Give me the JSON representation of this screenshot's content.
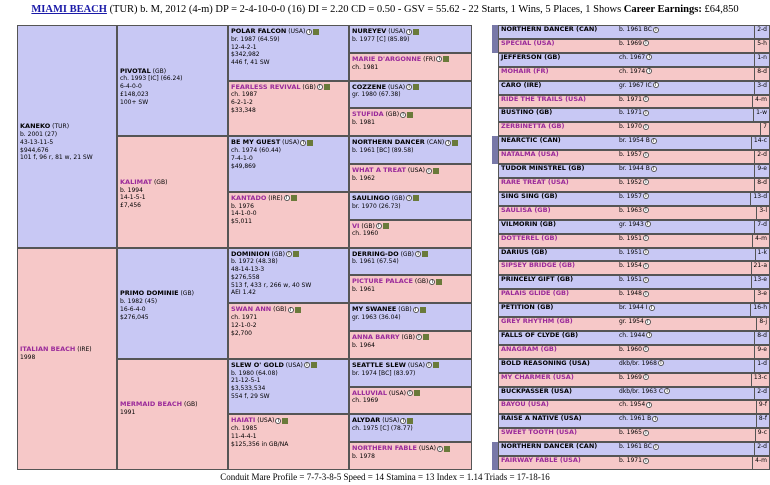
{
  "header": {
    "horse": "MIAMI BEACH",
    "rest": " (TUR) b. M, 2012 (4-m) DP = 2-4-10-0-0 (16) DI = 2.20   CD = 0.50 - GSV = 55.62 - 22 Starts, 1 Wins, 5 Places, 1 Shows ",
    "earn_label": "Career Earnings:",
    "earn": " £64,850"
  },
  "footer": "Conduit Mare Profile = 7-7-3-8-5   Speed = 14   Stamina = 13   Index = 1.14   Triads = 17-18-16",
  "g1": [
    {
      "name": "KANEKO",
      "rest": " (TUR)",
      "lines": [
        "b. 2001 (27)",
        "43-13-11-5",
        "$944,676",
        "101 f, 96 r, 81 w, 21 SW"
      ]
    },
    {
      "name": "ITALIAN BEACH",
      "rest": " (IRE)",
      "lines": [
        "1998"
      ]
    }
  ],
  "g2": [
    {
      "name": "PIVOTAL",
      "rest": " (GB)",
      "lines": [
        "ch. 1993 [IC] (66.24)",
        "6-4-0-0",
        "£148,023",
        "100+ SW"
      ]
    },
    {
      "name": "KALIMAT",
      "rest": " (GB)",
      "lines": [
        "b. 1994",
        "14-1-5-1",
        "£7,456"
      ]
    },
    {
      "name": "PRIMO DOMINIE",
      "rest": " (GB)",
      "lines": [
        "b. 1982 (45)",
        "16-6-4-0",
        "$276,045"
      ]
    },
    {
      "name": "MERMAID BEACH",
      "rest": " (GB)",
      "lines": [
        "1991"
      ]
    }
  ],
  "g3": [
    {
      "name": "POLAR FALCON",
      "rest": " (USA)",
      "lines": [
        "br. 1987 (64.59)",
        "12-4-2-1",
        "$342,982",
        "446 f, 41 SW"
      ]
    },
    {
      "name": "FEARLESS REVIVAL",
      "rest": " (GB)",
      "lines": [
        "ch. 1987",
        "6-2-1-2",
        "$33,348"
      ]
    },
    {
      "name": "BE MY GUEST",
      "rest": " (USA)",
      "lines": [
        "ch. 1974 (60.44)",
        "7-4-1-0",
        "$49,869"
      ]
    },
    {
      "name": "KANTADO",
      "rest": " (IRE)",
      "lines": [
        "b. 1976",
        "14-1-0-0",
        "$5,011"
      ]
    },
    {
      "name": "DOMINION",
      "rest": " (GB)",
      "lines": [
        "b. 1972 (48.38)",
        "48-14-13-3",
        "$276,558",
        "513 f, 433 r, 266 w, 40 SW",
        "AEI 1.42"
      ]
    },
    {
      "name": "SWAN ANN",
      "rest": " (GB)",
      "lines": [
        "ch. 1971",
        "12-1-0-2",
        "$2,700"
      ]
    },
    {
      "name": "SLEW O' GOLD",
      "rest": " (USA)",
      "lines": [
        "b. 1980 (64.08)",
        "21-12-5-1",
        "$3,533,534",
        "554 f, 29 SW"
      ]
    },
    {
      "name": "HAIATI",
      "rest": " (USA)",
      "lines": [
        "ch. 1985",
        "11-4-4-1",
        "$125,356 in GB/NA"
      ]
    }
  ],
  "g4": [
    {
      "name": "NUREYEV",
      "rest": " (USA)",
      "l": "b. 1977 [C] (85.89)"
    },
    {
      "name": "MARIE D'ARGONNE",
      "rest": " (FR)",
      "l": "ch. 1981"
    },
    {
      "name": "COZZENE",
      "rest": " (USA)",
      "l": "gr. 1980 (67.38)"
    },
    {
      "name": "STUFIDA",
      "rest": " (GB)",
      "l": "b. 1981"
    },
    {
      "name": "NORTHERN DANCER",
      "rest": " (CAN)",
      "l": "b. 1961 [BC] (89.58)"
    },
    {
      "name": "WHAT A TREAT",
      "rest": " (USA)",
      "l": "b. 1962"
    },
    {
      "name": "SAULINGO",
      "rest": " (GB)",
      "l": "br. 1970 (26.73)"
    },
    {
      "name": "VI",
      "rest": " (GB)",
      "l": "ch. 1960"
    },
    {
      "name": "DERRING-DO",
      "rest": " (GB)",
      "l": "b. 1961 (67.54)"
    },
    {
      "name": "PICTURE PALACE",
      "rest": " (GB)",
      "l": "b. 1961"
    },
    {
      "name": "MY SWANEE",
      "rest": " (GB)",
      "l": "gr. 1963 (36.04)"
    },
    {
      "name": "ANNA BARRY",
      "rest": " (GB)",
      "l": "b. 1964"
    },
    {
      "name": "SEATTLE SLEW",
      "rest": " (USA)",
      "l": "br. 1974 [BC] (83.97)"
    },
    {
      "name": "ALLUVIAL",
      "rest": " (USA)",
      "l": "ch. 1969"
    },
    {
      "name": "ALYDAR",
      "rest": " (USA)",
      "l": "ch. 1975 [C] (78.77)"
    },
    {
      "name": "NORTHERN FABLE",
      "rest": " (USA)",
      "l": "b. 1978"
    }
  ],
  "g5": [
    {
      "name": "NORTHERN DANCER (CAN)",
      "l": "b. 1961 BC",
      "sr": "2-d"
    },
    {
      "name": "SPECIAL (USA)",
      "l": "b. 1969",
      "sr": "5-h"
    },
    {
      "name": "JEFFERSON (GB)",
      "l": "ch. 1967",
      "sr": "1-n"
    },
    {
      "name": "MOHAIR (FR)",
      "l": "ch. 1974",
      "sr": "8-d"
    },
    {
      "name": "CARO (IRE)",
      "l": "gr. 1967 IC",
      "sr": "3-d"
    },
    {
      "name": "RIDE THE TRAILS (USA)",
      "l": "b. 1971",
      "sr": "4-m"
    },
    {
      "name": "BUSTINO (GB)",
      "l": "b. 1971",
      "sr": "1-w"
    },
    {
      "name": "ZERBINETTA (GB)",
      "l": "b. 1970",
      "sr": "7"
    },
    {
      "name": "NEARCTIC (CAN)",
      "l": "br. 1954 B",
      "sr": "14-c"
    },
    {
      "name": "NATALMA (USA)",
      "l": "b. 1957",
      "sr": "2-d"
    },
    {
      "name": "TUDOR MINSTREL (GB)",
      "l": "br. 1944 B",
      "sr": "9-e"
    },
    {
      "name": "RARE TREAT (USA)",
      "l": "b. 1952",
      "sr": "8-d"
    },
    {
      "name": "SING SING (GB)",
      "l": "b. 1957",
      "sr": "13-d"
    },
    {
      "name": "SAULISA (GB)",
      "l": "b. 1963",
      "sr": "3-l"
    },
    {
      "name": "VILMORIN (GB)",
      "l": "gr. 1943",
      "sr": "7-d"
    },
    {
      "name": "DOTTEREL (GB)",
      "l": "b. 1951",
      "sr": "4-m"
    },
    {
      "name": "DARIUS (GB)",
      "l": "b. 1951",
      "sr": "1-k"
    },
    {
      "name": "SIPSEY BRIDGE (GB)",
      "l": "b. 1954",
      "sr": "21-a"
    },
    {
      "name": "PRINCELY GIFT (GB)",
      "l": "b. 1951",
      "sr": "13-e"
    },
    {
      "name": "PALAIS GLIDE (GB)",
      "l": "b. 1948",
      "sr": "3-e"
    },
    {
      "name": "PETITION (GB)",
      "l": "br. 1944 I",
      "sr": "16-h"
    },
    {
      "name": "GREY RHYTHM (GB)",
      "l": "gr. 1954",
      "sr": "8-j"
    },
    {
      "name": "FALLS OF CLYDE (GB)",
      "l": "ch. 1944",
      "sr": "8-d"
    },
    {
      "name": "ANAGRAM (GB)",
      "l": "b. 1960",
      "sr": "9-e"
    },
    {
      "name": "BOLD REASONING (USA)",
      "l": "dkb/br. 1968",
      "sr": "1-d"
    },
    {
      "name": "MY CHARMER (USA)",
      "l": "b. 1969",
      "sr": "13-c"
    },
    {
      "name": "BUCKPASSER (USA)",
      "l": "dkb/br. 1963 C",
      "sr": "2-d"
    },
    {
      "name": "BAYOU (USA)",
      "l": "ch. 1954",
      "sr": "9-f"
    },
    {
      "name": "RAISE A NATIVE (USA)",
      "l": "ch. 1961 B",
      "sr": "8-f"
    },
    {
      "name": "SWEET TOOTH (USA)",
      "l": "b. 1965",
      "sr": "9-c"
    },
    {
      "name": "NORTHERN DANCER (CAN)",
      "l": "b. 1961 BC",
      "sr": "2-d"
    },
    {
      "name": "FAIRWAY FABLE (USA)",
      "l": "b. 1971",
      "sr": "4-m"
    }
  ]
}
